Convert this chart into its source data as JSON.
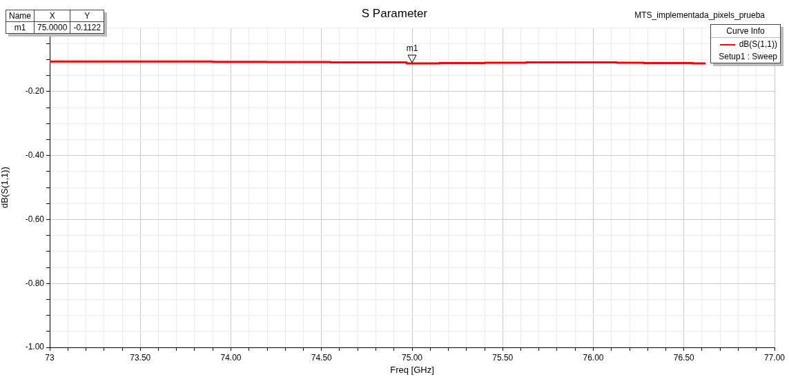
{
  "chart_data": {
    "type": "line",
    "title": "S Parameter",
    "xlabel": "Freq [GHz]",
    "ylabel": "dB(S(1,1))",
    "legend_title": "Curve Info",
    "legend": "top right",
    "grid": true,
    "marker": "none",
    "line_style": "solid",
    "xlim": [
      73,
      77
    ],
    "ylim": [
      -1,
      0
    ],
    "xticks": [
      73,
      {
        "value": 73.1,
        "label": null
      },
      {
        "value": 73.2,
        "label": null
      },
      {
        "value": 73.3,
        "label": null
      },
      {
        "value": 73.4,
        "label": null
      },
      {
        "value": 73.5,
        "label": "73.50"
      },
      {
        "value": 73.6,
        "label": null
      },
      {
        "value": 73.7,
        "label": null
      },
      {
        "value": 73.8,
        "label": null
      },
      {
        "value": 73.9,
        "label": null
      },
      {
        "value": 74,
        "label": "74.00"
      },
      {
        "value": 74.1,
        "label": null
      },
      {
        "value": 74.2,
        "label": null
      },
      {
        "value": 74.3,
        "label": null
      },
      {
        "value": 74.4,
        "label": null
      },
      {
        "value": 74.5,
        "label": "74.50"
      },
      {
        "value": 74.6,
        "label": null
      },
      {
        "value": 74.7,
        "label": null
      },
      {
        "value": 74.8,
        "label": null
      },
      {
        "value": 74.9,
        "label": null
      },
      {
        "value": 75,
        "label": "75.00"
      },
      {
        "value": 75.1,
        "label": null
      },
      {
        "value": 75.2,
        "label": null
      },
      {
        "value": 75.3,
        "label": null
      },
      {
        "value": 75.4,
        "label": null
      },
      {
        "value": 75.5,
        "label": "75.50"
      },
      {
        "value": 75.6,
        "label": null
      },
      {
        "value": 75.7,
        "label": null
      },
      {
        "value": 75.8,
        "label": null
      },
      {
        "value": 75.9,
        "label": null
      },
      {
        "value": 76,
        "label": "76.00"
      },
      {
        "value": 76.1,
        "label": null
      },
      {
        "value": 76.2,
        "label": null
      },
      {
        "value": 76.3,
        "label": null
      },
      {
        "value": 76.4,
        "label": null
      },
      {
        "value": 76.5,
        "label": "76.50"
      },
      {
        "value": 76.6,
        "label": null
      },
      {
        "value": 76.7,
        "label": null
      },
      {
        "value": 76.8,
        "label": null
      },
      {
        "value": 76.9,
        "label": null
      },
      {
        "value": 77,
        "label": "77.00"
      }
    ],
    "yticks": [
      {
        "value": -1,
        "label": "-1.00"
      },
      {
        "value": -0.95,
        "label": null
      },
      {
        "value": -0.9,
        "label": null
      },
      {
        "value": -0.85,
        "label": null
      },
      {
        "value": -0.8,
        "label": "-0.80"
      },
      {
        "value": -0.75,
        "label": null
      },
      {
        "value": -0.7,
        "label": null
      },
      {
        "value": -0.65,
        "label": null
      },
      {
        "value": -0.6,
        "label": "-0.60"
      },
      {
        "value": -0.55,
        "label": null
      },
      {
        "value": -0.5,
        "label": null
      },
      {
        "value": -0.45,
        "label": null
      },
      {
        "value": -0.4,
        "label": "-0.40"
      },
      {
        "value": -0.35,
        "label": null
      },
      {
        "value": -0.3,
        "label": null
      },
      {
        "value": -0.25,
        "label": null
      },
      {
        "value": -0.2,
        "label": "-0.20"
      },
      {
        "value": -0.15,
        "label": null
      },
      {
        "value": -0.1,
        "label": null
      },
      {
        "value": -0.05,
        "label": null
      },
      {
        "value": 0,
        "label": null
      }
    ],
    "series": [
      {
        "name": "dB(S(1,1))",
        "color": "#ff0000",
        "x": [
          73,
          73.9,
          73.9,
          74.2,
          74.2,
          74.55,
          74.55,
          74.97,
          74.97,
          75.15,
          75.15,
          75.4,
          75.4,
          75.63,
          75.63,
          76.13,
          76.13,
          76.28,
          76.28,
          76.55,
          76.55,
          76.62
        ],
        "values": [
          -0.106,
          -0.106,
          -0.107,
          -0.107,
          -0.108,
          -0.108,
          -0.109,
          -0.109,
          -0.112,
          -0.112,
          -0.111,
          -0.111,
          -0.11,
          -0.11,
          -0.109,
          -0.109,
          -0.11,
          -0.11,
          -0.111,
          -0.111,
          -0.112,
          -0.112
        ]
      }
    ],
    "annotations": [
      "MTS_implementada_pixels_prueba",
      "Setup1 : Sweep",
      {
        "text": "m1",
        "x": 75,
        "y": -0.1122
      },
      "Name",
      "X",
      "Y",
      "m1",
      "75.0000",
      "-0.1122"
    ]
  }
}
